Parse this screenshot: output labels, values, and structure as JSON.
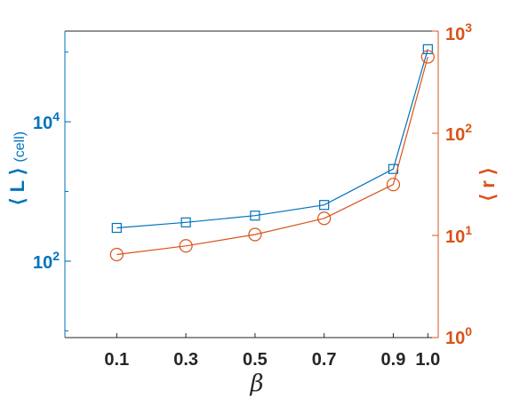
{
  "chart_data": {
    "type": "line",
    "x": [
      0.1,
      0.3,
      0.5,
      0.7,
      0.9,
      1.0
    ],
    "x_tick_labels": [
      "0.1",
      "0.3",
      "0.5",
      "0.7",
      "0.9",
      "1.0"
    ],
    "xlabel": "β",
    "xlim": [
      -0.05,
      1.03
    ],
    "grid": false,
    "legend": "none",
    "left_axis": {
      "label_main": "⟨ L ⟩",
      "label_unit": "(cell)",
      "scale": "log",
      "ylim": [
        8,
        200000
      ],
      "ticks": [
        100,
        10000
      ],
      "tick_bases": [
        "10",
        "10"
      ],
      "tick_exponents": [
        "2",
        "4"
      ],
      "color": "#0072bd"
    },
    "right_axis": {
      "label": "⟨ r ⟩",
      "scale": "log",
      "ylim": [
        1,
        1000
      ],
      "ticks": [
        1,
        10,
        100,
        1000
      ],
      "tick_bases": [
        "10",
        "10",
        "10",
        "10"
      ],
      "tick_exponents": [
        "0",
        "1",
        "2",
        "3"
      ],
      "color": "#d95319"
    },
    "series": [
      {
        "axis": "left",
        "marker": "square",
        "color": "#0072bd",
        "values": [
          300,
          360,
          450,
          640,
          2100,
          110000
        ]
      },
      {
        "axis": "right",
        "marker": "circle",
        "color": "#d95319",
        "values": [
          6.5,
          7.9,
          10.2,
          14.7,
          31.5,
          560
        ]
      }
    ]
  }
}
